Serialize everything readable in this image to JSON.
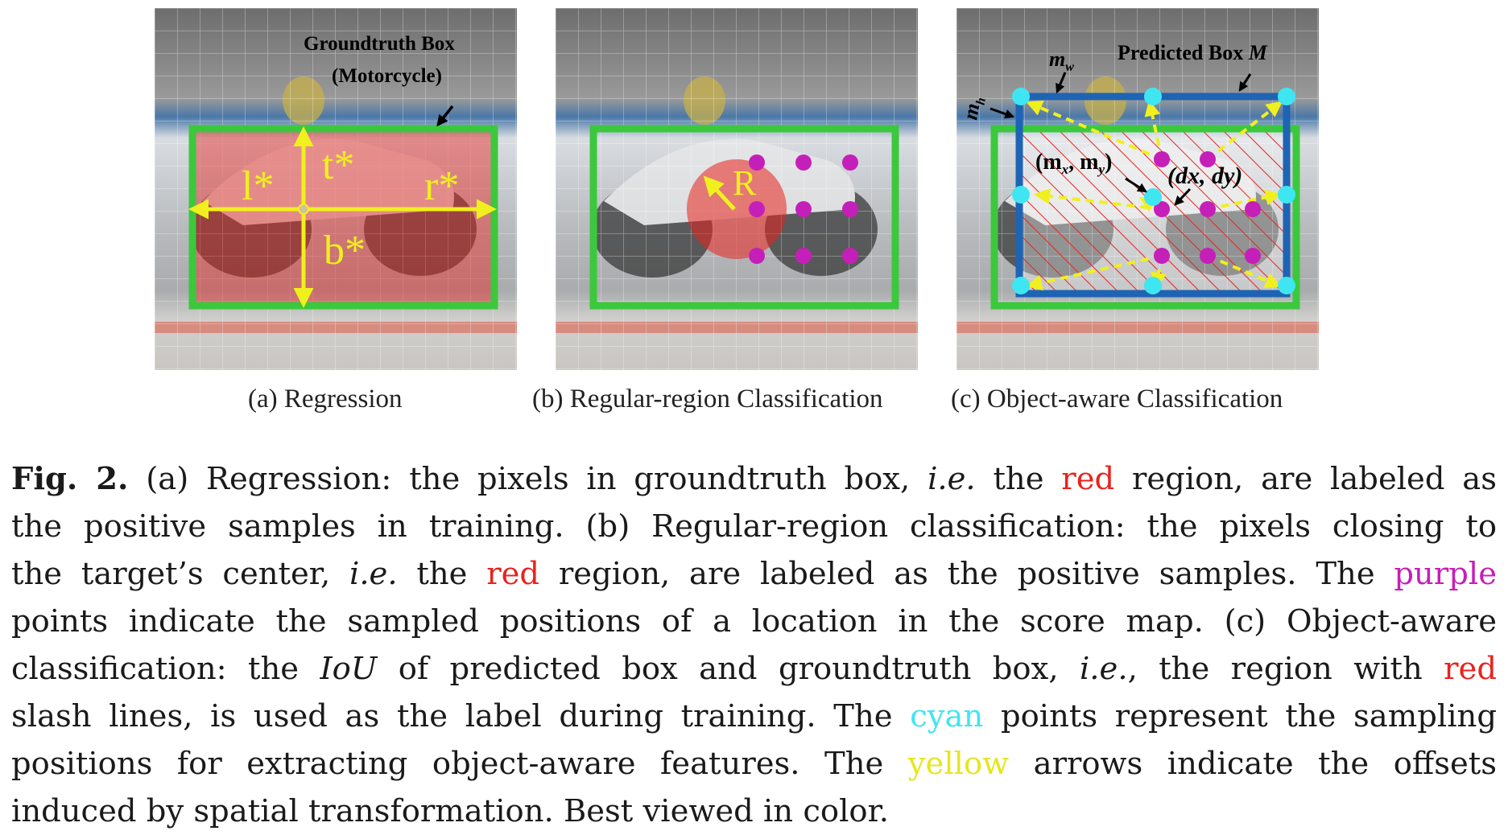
{
  "panels": {
    "a": {
      "caption": "(a) Regression",
      "gt_label_line1": "Groundtruth Box",
      "gt_label_line2": "(Motorcycle)",
      "l": "l*",
      "t": "t*",
      "r": "r*",
      "b": "b*"
    },
    "b": {
      "caption": "(b) Regular-region Classification",
      "radius_label": "R"
    },
    "c": {
      "caption": "(c) Object-aware Classification",
      "mw": "m",
      "mw_sub": "w",
      "mh": "m",
      "mh_sub": "h",
      "predicted_label": "Predicted Box ",
      "predicted_var": "M",
      "mxy_label": "(m",
      "mxy_x": "x",
      "mxy_mid": ", m",
      "mxy_y": "y",
      "mxy_close": ")",
      "dxy_label": "(dx, dy)"
    }
  },
  "caption": {
    "fig": "Fig. 2.",
    "l1a": " (a) Regression: the pixels in groundtruth box, ",
    "ie1": "i.e.",
    "l1b": " the ",
    "red1": "red",
    "l1c": " region, are labeled as",
    "l2": "the positive samples in training. (b) Regular-region classification: the pixels closing to",
    "l3a": "the target’s center, ",
    "ie2": "i.e.",
    "l3b": " the ",
    "red2": "red",
    "l3c": " region, are labeled as the positive samples. The ",
    "purple": "purple",
    "l4": "points indicate the sampled positions of a location in the score map. (c) Object-aware",
    "l5a": "classification: the ",
    "iou": "IoU",
    "l5b": " of predicted box and groundtruth box, ",
    "ie3": "i.e.",
    "l5c": ", the region with ",
    "red3": "red",
    "l6a": "slash lines, is used as the label during training. The ",
    "cyan": "cyan",
    "l6b": " points represent the sampling",
    "l7a": "positions for extracting object-aware features. The ",
    "yellow": "yellow",
    "l7b": " arrows indicate the offsets",
    "l8": "induced by spatial transformation. Best viewed in color."
  },
  "colors": {
    "groundtruth_box": "#3cc83c",
    "predicted_box": "#1e64b4",
    "red_region": "#e8231e",
    "purple_points": "#c51fb9",
    "cyan_points": "#3fe6f2",
    "yellow_arrows": "#f0f01e"
  }
}
